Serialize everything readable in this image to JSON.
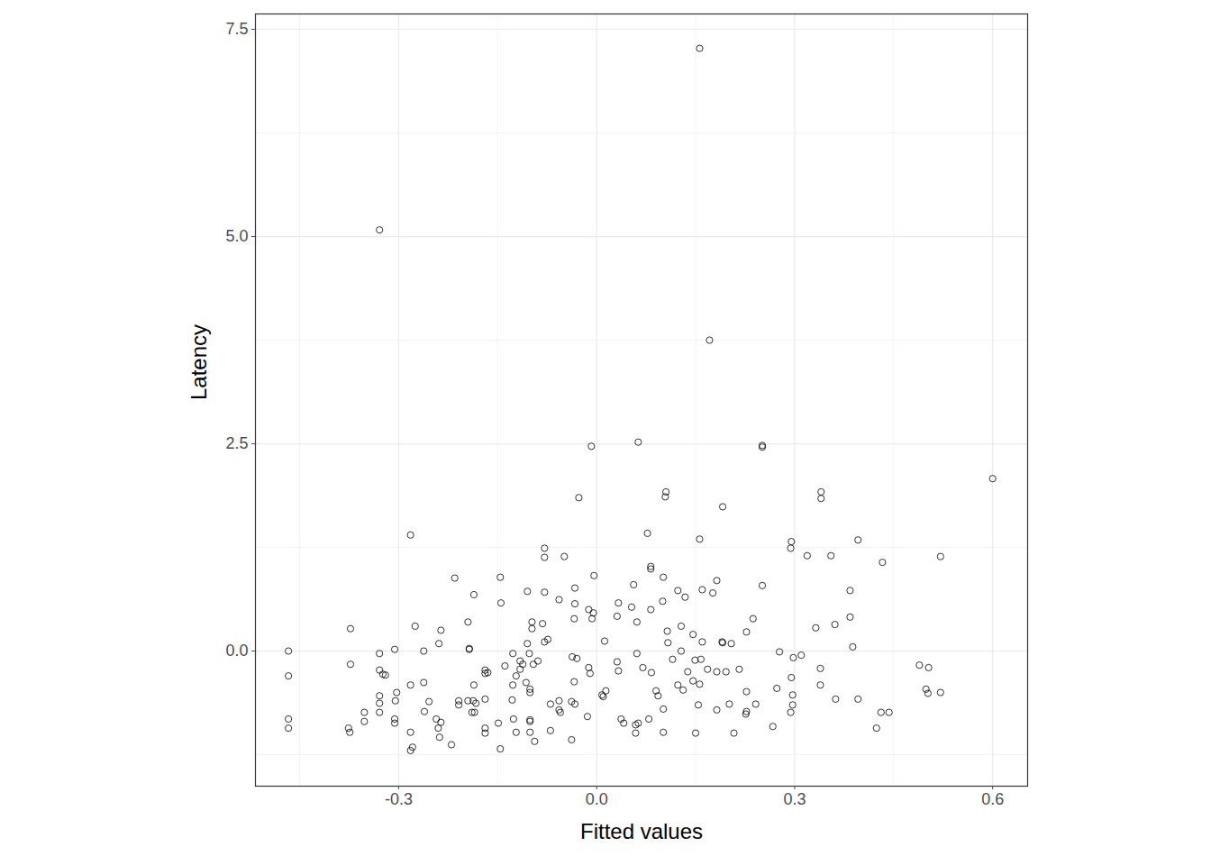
{
  "chart_data": {
    "type": "scatter",
    "x_label": "Fitted values",
    "y_label": "Latency",
    "x": [
      0.156,
      -0.329,
      0.171,
      -0.008,
      0.063,
      0.251,
      0.251,
      0.6,
      -0.027,
      0.105,
      0.104,
      0.34,
      0.34,
      0.191,
      -0.282,
      0.077,
      0.156,
      0.295,
      0.294,
      0.319,
      0.396,
      0.355,
      0.521,
      0.433,
      -0.079,
      -0.079,
      -0.049,
      0.082,
      0.082,
      -0.215,
      -0.146,
      -0.004,
      0.056,
      0.101,
      0.182,
      0.251,
      0.384,
      -0.105,
      -0.186,
      -0.079,
      -0.033,
      0.123,
      0.16,
      0.176,
      0.134,
      -0.057,
      0.1,
      -0.145,
      -0.033,
      -0.012,
      -0.005,
      0.033,
      0.053,
      0.082,
      0.031,
      -0.034,
      -0.007,
      0.061,
      -0.098,
      -0.082,
      -0.195,
      -0.098,
      -0.275,
      -0.373,
      -0.236,
      0.107,
      0.128,
      0.146,
      0.237,
      0.227,
      0.332,
      0.361,
      0.384,
      0.388,
      -0.074,
      -0.079,
      -0.105,
      -0.239,
      0.012,
      0.108,
      0.16,
      0.19,
      0.191,
      0.204,
      -0.193,
      -0.193,
      -0.306,
      -0.262,
      -0.467,
      -0.329,
      -0.127,
      -0.102,
      0.061,
      0.128,
      0.277,
      0.31,
      0.298,
      -0.037,
      -0.03,
      -0.116,
      -0.112,
      -0.089,
      -0.096,
      -0.373,
      0.031,
      0.07,
      0.115,
      0.149,
      0.158,
      0.138,
      0.168,
      0.182,
      0.196,
      0.216,
      0.083,
      0.339,
      0.489,
      0.503,
      -0.329,
      -0.324,
      -0.32,
      -0.169,
      -0.169,
      -0.165,
      -0.116,
      -0.122,
      -0.107,
      -0.101,
      -0.101,
      -0.139,
      -0.01,
      0.033,
      -0.467,
      -0.012,
      -0.034,
      -0.262,
      -0.282,
      -0.186,
      -0.127,
      0.146,
      0.156,
      0.123,
      0.09,
      0.093,
      0.014,
      0.008,
      0.131,
      0.227,
      0.273,
      0.297,
      0.297,
      0.294,
      0.295,
      0.339,
      0.362,
      0.396,
      0.499,
      0.502,
      0.521,
      -0.303,
      -0.305,
      -0.329,
      -0.329,
      -0.329,
      -0.352,
      -0.352,
      -0.306,
      -0.306,
      -0.254,
      -0.261,
      -0.243,
      -0.236,
      -0.24,
      -0.238,
      -0.209,
      -0.195,
      -0.187,
      -0.209,
      -0.183,
      -0.189,
      -0.185,
      -0.169,
      -0.169,
      -0.169,
      -0.22,
      -0.282,
      -0.279,
      -0.282,
      -0.128,
      -0.126,
      -0.149,
      -0.146,
      -0.122,
      -0.101,
      -0.101,
      -0.101,
      -0.094,
      -0.07,
      -0.07,
      -0.057,
      -0.057,
      -0.055,
      -0.038,
      -0.033,
      -0.014,
      -0.038,
      0.01,
      0.037,
      0.041,
      0.059,
      0.063,
      0.059,
      0.079,
      0.101,
      0.101,
      0.154,
      0.15,
      0.182,
      0.201,
      0.208,
      0.227,
      0.226,
      0.241,
      0.267,
      -0.376,
      -0.374,
      -0.467,
      -0.467,
      0.424,
      0.431,
      0.443
    ],
    "values": [
      7.27,
      5.08,
      3.75,
      2.47,
      2.52,
      2.48,
      2.46,
      2.08,
      1.85,
      1.92,
      1.86,
      1.92,
      1.84,
      1.74,
      1.4,
      1.42,
      1.35,
      1.32,
      1.24,
      1.15,
      1.34,
      1.15,
      1.14,
      1.07,
      1.24,
      1.13,
      1.14,
      1.02,
      0.99,
      0.88,
      0.89,
      0.91,
      0.8,
      0.89,
      0.85,
      0.79,
      0.73,
      0.72,
      0.68,
      0.71,
      0.76,
      0.73,
      0.74,
      0.7,
      0.65,
      0.62,
      0.6,
      0.58,
      0.57,
      0.5,
      0.46,
      0.58,
      0.53,
      0.5,
      0.42,
      0.39,
      0.39,
      0.35,
      0.35,
      0.33,
      0.35,
      0.27,
      0.3,
      0.27,
      0.25,
      0.24,
      0.3,
      0.2,
      0.39,
      0.23,
      0.28,
      0.32,
      0.41,
      0.05,
      0.14,
      0.11,
      0.09,
      0.09,
      0.12,
      0.1,
      0.11,
      0.11,
      0.1,
      0.09,
      0.03,
      0.02,
      0.02,
      0.0,
      0.0,
      -0.03,
      -0.03,
      -0.03,
      -0.03,
      0.0,
      -0.01,
      -0.05,
      -0.08,
      -0.07,
      -0.09,
      -0.12,
      -0.16,
      -0.12,
      -0.16,
      -0.16,
      -0.13,
      -0.2,
      -0.1,
      -0.11,
      -0.1,
      -0.25,
      -0.22,
      -0.25,
      -0.25,
      -0.22,
      -0.26,
      -0.21,
      -0.17,
      -0.2,
      -0.23,
      -0.28,
      -0.29,
      -0.23,
      -0.27,
      -0.26,
      -0.22,
      -0.3,
      -0.38,
      -0.46,
      -0.5,
      -0.18,
      -0.27,
      -0.24,
      -0.3,
      -0.2,
      -0.37,
      -0.38,
      -0.41,
      -0.41,
      -0.41,
      -0.36,
      -0.4,
      -0.41,
      -0.48,
      -0.54,
      -0.48,
      -0.53,
      -0.47,
      -0.49,
      -0.45,
      -0.53,
      -0.65,
      -0.74,
      -0.32,
      -0.41,
      -0.58,
      -0.58,
      -0.46,
      -0.51,
      -0.5,
      -0.5,
      -0.6,
      -0.54,
      -0.63,
      -0.74,
      -0.74,
      -0.85,
      -0.82,
      -0.87,
      -0.61,
      -0.73,
      -0.82,
      -0.86,
      -0.93,
      -1.04,
      -0.6,
      -0.6,
      -0.6,
      -0.65,
      -0.63,
      -0.74,
      -0.74,
      -0.58,
      -0.93,
      -0.99,
      -1.13,
      -1.2,
      -1.16,
      -0.98,
      -0.59,
      -0.82,
      -0.87,
      -1.18,
      -0.98,
      -0.83,
      -0.85,
      -0.98,
      -1.09,
      -0.96,
      -0.64,
      -0.6,
      -0.71,
      -0.74,
      -0.61,
      -0.64,
      -0.79,
      -1.07,
      -0.55,
      -0.82,
      -0.87,
      -0.89,
      -0.87,
      -0.99,
      -0.82,
      -0.7,
      -0.98,
      -0.65,
      -0.99,
      -0.71,
      -0.64,
      -0.99,
      -0.73,
      -0.76,
      -0.64,
      -0.91,
      -0.93,
      -0.98,
      -0.82,
      -0.93,
      -0.93,
      -0.74,
      -0.74
    ],
    "xlim": [
      -0.517,
      0.653
    ],
    "ylim": [
      -1.63,
      7.685
    ],
    "xticks": [
      -0.3,
      {
        "value": 0,
        "label": "0.0"
      },
      0.3,
      0.6
    ],
    "yticks": [
      {
        "value": 0,
        "label": "0.0"
      },
      2.5,
      {
        "value": 5,
        "label": "5.0"
      },
      7.5
    ],
    "grid": true,
    "marker": "open circle",
    "color": "#000000"
  }
}
